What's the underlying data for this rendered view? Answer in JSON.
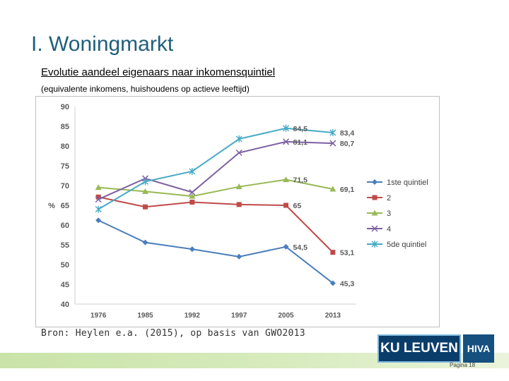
{
  "slide": {
    "title": "I. Woningmarkt",
    "subtitle": "Evolutie aandeel eigenaars naar inkomensquintiel",
    "caption": "(equivalente inkomens, huishoudens op actieve leeftijd)",
    "source": "Bron: Heylen e.a. (2015), op basis van GWO2013",
    "page_label": "Pagina 18"
  },
  "logos": {
    "ku_leuven": "KU LEUVEN",
    "hiva": "HIVA"
  },
  "chart_data": {
    "type": "line",
    "title": "",
    "xlabel": "",
    "ylabel": "%",
    "x": [
      "1976",
      "1985",
      "1992",
      "1997",
      "2005",
      "2013"
    ],
    "ylim": [
      40,
      90
    ],
    "yticks": [
      40,
      45,
      50,
      55,
      60,
      65,
      70,
      75,
      80,
      85,
      90
    ],
    "grid": false,
    "legend_position": "right",
    "series": [
      {
        "name": "1ste quintiel",
        "color": "#4a7ebb",
        "marker": "diamond",
        "values": [
          61.2,
          55.6,
          53.9,
          52.0,
          54.5,
          45.3
        ],
        "labels": [
          "",
          "",
          "",
          "",
          "54,5",
          "45,3"
        ]
      },
      {
        "name": "2",
        "color": "#be4b48",
        "marker": "square",
        "values": [
          67.1,
          64.6,
          65.8,
          65.2,
          65.0,
          53.1
        ],
        "labels": [
          "",
          "",
          "",
          "",
          "65",
          "53,1"
        ]
      },
      {
        "name": "3",
        "color": "#98b954",
        "marker": "triangle",
        "values": [
          69.5,
          68.5,
          67.3,
          69.7,
          71.5,
          69.1
        ],
        "labels": [
          "",
          "",
          "",
          "",
          "71,5",
          "69,1"
        ]
      },
      {
        "name": "4",
        "color": "#7d60a0",
        "marker": "x",
        "values": [
          66.5,
          71.8,
          68.3,
          78.3,
          81.1,
          80.7
        ],
        "labels": [
          "",
          "",
          "",
          "",
          "81,1",
          "80,7"
        ]
      },
      {
        "name": "5de quintiel",
        "color": "#46aac5",
        "marker": "star",
        "values": [
          64.0,
          71.0,
          73.6,
          81.8,
          84.5,
          83.4
        ],
        "labels": [
          "",
          "",
          "",
          "",
          "84,5",
          "83,4"
        ]
      }
    ]
  }
}
